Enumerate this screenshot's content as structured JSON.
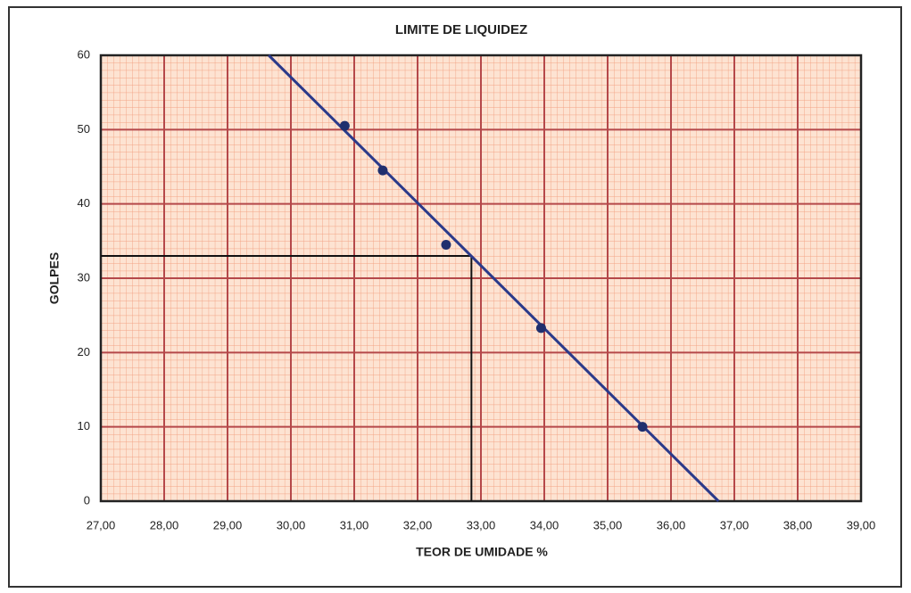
{
  "chart_data": {
    "type": "scatter",
    "title": "LIMITE DE LIQUIDEZ",
    "xlabel": "TEOR DE UMIDADE %",
    "ylabel": "GOLPES",
    "x": [
      30.85,
      31.45,
      32.45,
      33.95,
      35.55
    ],
    "values": [
      50.5,
      44.5,
      34.5,
      23.3,
      10
    ],
    "color": "#1f2f6e",
    "trendline": {
      "x": [
        29.65,
        36.75
      ],
      "y": [
        60,
        0
      ],
      "color": "#2b3a8a"
    },
    "guide": {
      "x": 32.85,
      "y": 33,
      "color": "#111111"
    },
    "xlim": [
      27,
      39
    ],
    "xticks": [
      {
        "value": 27,
        "label": "27,00"
      },
      {
        "value": 28,
        "label": "28,00"
      },
      {
        "value": 29,
        "label": "29,00"
      },
      {
        "value": 30,
        "label": "30,00"
      },
      {
        "value": 31,
        "label": "31,00"
      },
      {
        "value": 32,
        "label": "32,00"
      },
      {
        "value": 33,
        "label": "33,00"
      },
      {
        "value": 34,
        "label": "34,00"
      },
      {
        "value": 35,
        "label": "35,00"
      },
      {
        "value": 36,
        "label": "36,00"
      },
      {
        "value": 37,
        "label": "37,00"
      },
      {
        "value": 38,
        "label": "38,00"
      },
      {
        "value": 39,
        "label": "39,00"
      }
    ],
    "ylim": [
      0,
      60
    ],
    "yticks": [
      0,
      10,
      20,
      30,
      40,
      50,
      60
    ],
    "grid": true
  }
}
